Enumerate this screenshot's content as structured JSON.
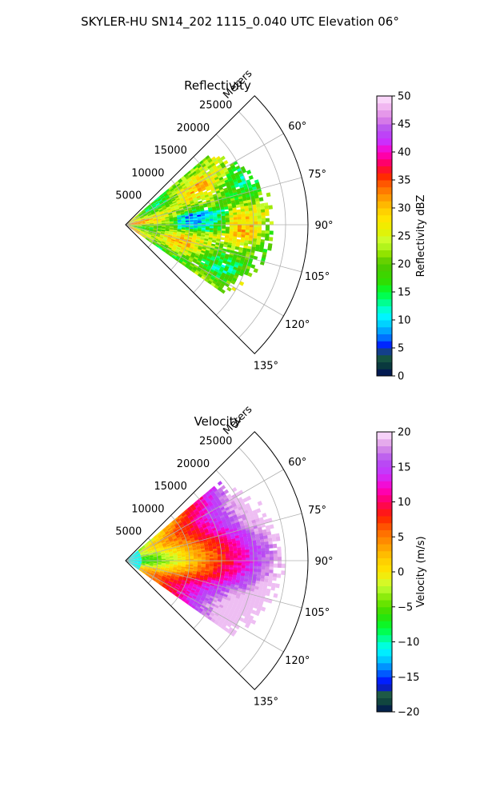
{
  "suptitle": "SKYLER-HU  SN14_202  1115_0.040 UTC Elevation 06°",
  "chart_data": [
    {
      "type": "heatmap",
      "subtype": "polar-ppi",
      "title": "Reflectivity",
      "range_label": "Meters",
      "range_ticks": [
        5000,
        10000,
        15000,
        20000,
        25000
      ],
      "range_tick_labels": [
        "5000",
        "10000",
        "15000",
        "20000",
        "25000"
      ],
      "rmax": 28500,
      "theta_ticks": [
        60,
        75,
        90,
        105,
        120,
        135
      ],
      "theta_tick_labels": [
        "60°",
        "75°",
        "90°",
        "105°",
        "120°",
        "135°"
      ],
      "theta_range": [
        45,
        135
      ],
      "data_azimuth_range": [
        50,
        125
      ],
      "data_range_m": [
        0,
        25000
      ],
      "grid": true,
      "colorbar": {
        "label": "Reflectivity dBZ",
        "min": 0,
        "max": 50,
        "ticks": [
          0,
          5,
          10,
          15,
          20,
          25,
          30,
          35,
          40,
          45,
          50
        ],
        "tick_labels": [
          "0",
          "5",
          "10",
          "15",
          "20",
          "25",
          "30",
          "35",
          "40",
          "45",
          "50"
        ],
        "stops": [
          [
            0,
            "#000a5a"
          ],
          [
            2,
            "#0a3c3c"
          ],
          [
            4,
            "#1e6446"
          ],
          [
            5,
            "#0000ff"
          ],
          [
            7,
            "#0078ff"
          ],
          [
            9,
            "#00c8ff"
          ],
          [
            11,
            "#00ffff"
          ],
          [
            13,
            "#00ff96"
          ],
          [
            15,
            "#00ff32"
          ],
          [
            17,
            "#32dc00"
          ],
          [
            20,
            "#50c800"
          ],
          [
            22,
            "#96e600"
          ],
          [
            24,
            "#c8ff32"
          ],
          [
            26,
            "#e6f000"
          ],
          [
            28,
            "#ffe600"
          ],
          [
            30,
            "#ffc800"
          ],
          [
            32,
            "#ff9600"
          ],
          [
            34,
            "#ff6400"
          ],
          [
            36,
            "#ff1e00"
          ],
          [
            38,
            "#ff0064"
          ],
          [
            40,
            "#ff00c8"
          ],
          [
            42,
            "#c832ff"
          ],
          [
            44,
            "#b450f0"
          ],
          [
            46,
            "#dc82e6"
          ],
          [
            48,
            "#f0b4f0"
          ],
          [
            50,
            "#ffe6ff"
          ]
        ]
      }
    },
    {
      "type": "heatmap",
      "subtype": "polar-ppi",
      "title": "Velocity",
      "range_label": "Meters",
      "range_ticks": [
        5000,
        10000,
        15000,
        20000,
        25000
      ],
      "range_tick_labels": [
        "5000",
        "10000",
        "15000",
        "20000",
        "25000"
      ],
      "rmax": 28500,
      "theta_ticks": [
        60,
        75,
        90,
        105,
        120,
        135
      ],
      "theta_tick_labels": [
        "60°",
        "75°",
        "90°",
        "105°",
        "120°",
        "135°"
      ],
      "theta_range": [
        45,
        135
      ],
      "data_azimuth_range": [
        50,
        125
      ],
      "data_range_m": [
        0,
        25000
      ],
      "grid": true,
      "colorbar": {
        "label": "Velocity (m/s)",
        "min": -20,
        "max": 20,
        "ticks": [
          -20,
          -15,
          -10,
          -5,
          0,
          5,
          10,
          15,
          20
        ],
        "tick_labels": [
          "−20",
          "−15",
          "−10",
          "−5",
          "0",
          "5",
          "10",
          "15",
          "20"
        ],
        "stops": [
          [
            -20,
            "#000a5a"
          ],
          [
            -19,
            "#0a3c3c"
          ],
          [
            -17.5,
            "#1e5a46"
          ],
          [
            -16,
            "#0000ff"
          ],
          [
            -14,
            "#0078ff"
          ],
          [
            -12.5,
            "#00c8ff"
          ],
          [
            -11,
            "#00ffff"
          ],
          [
            -9.5,
            "#00ff96"
          ],
          [
            -8,
            "#00ff32"
          ],
          [
            -6,
            "#32dc00"
          ],
          [
            -4,
            "#78e600"
          ],
          [
            -2,
            "#c8ff32"
          ],
          [
            0,
            "#ffe600"
          ],
          [
            2,
            "#ffc800"
          ],
          [
            4,
            "#ff9600"
          ],
          [
            6,
            "#ff6400"
          ],
          [
            8,
            "#ff1e00"
          ],
          [
            10,
            "#ff0064"
          ],
          [
            12,
            "#ff00c8"
          ],
          [
            14,
            "#c832ff"
          ],
          [
            16,
            "#b450f0"
          ],
          [
            18,
            "#dc96e6"
          ],
          [
            20,
            "#ffe6ff"
          ]
        ]
      }
    }
  ]
}
